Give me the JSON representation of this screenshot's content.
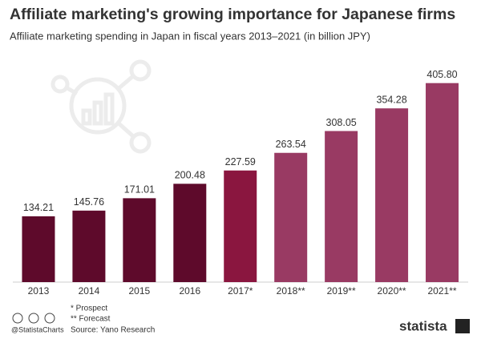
{
  "chart_data": {
    "type": "bar",
    "title": "Affiliate marketing's growing importance for Japanese firms",
    "subtitle": "Affiliate marketing spending in Japan in fiscal years 2013–2021 (in billion JPY)",
    "categories": [
      "2013",
      "2014",
      "2015",
      "2016",
      "2017*",
      "2018**",
      "2019**",
      "2020**",
      "2021**"
    ],
    "values": [
      134.21,
      145.76,
      171.01,
      200.48,
      227.59,
      263.54,
      308.05,
      354.28,
      405.8
    ],
    "value_labels": [
      "134.21",
      "145.76",
      "171.01",
      "200.48",
      "227.59",
      "263.54",
      "308.05",
      "354.28",
      "405.80"
    ],
    "colors": [
      "#5e0a2b",
      "#5e0a2b",
      "#5e0a2b",
      "#5e0a2b",
      "#8a163f",
      "#993a63",
      "#993a63",
      "#993a63",
      "#993a63"
    ],
    "ylim": [
      0,
      420
    ],
    "notes": [
      "*   Prospect",
      "** Forecast"
    ],
    "source": "Source: Yano Research",
    "credit": "@StatistaCharts",
    "brand": "statista"
  }
}
